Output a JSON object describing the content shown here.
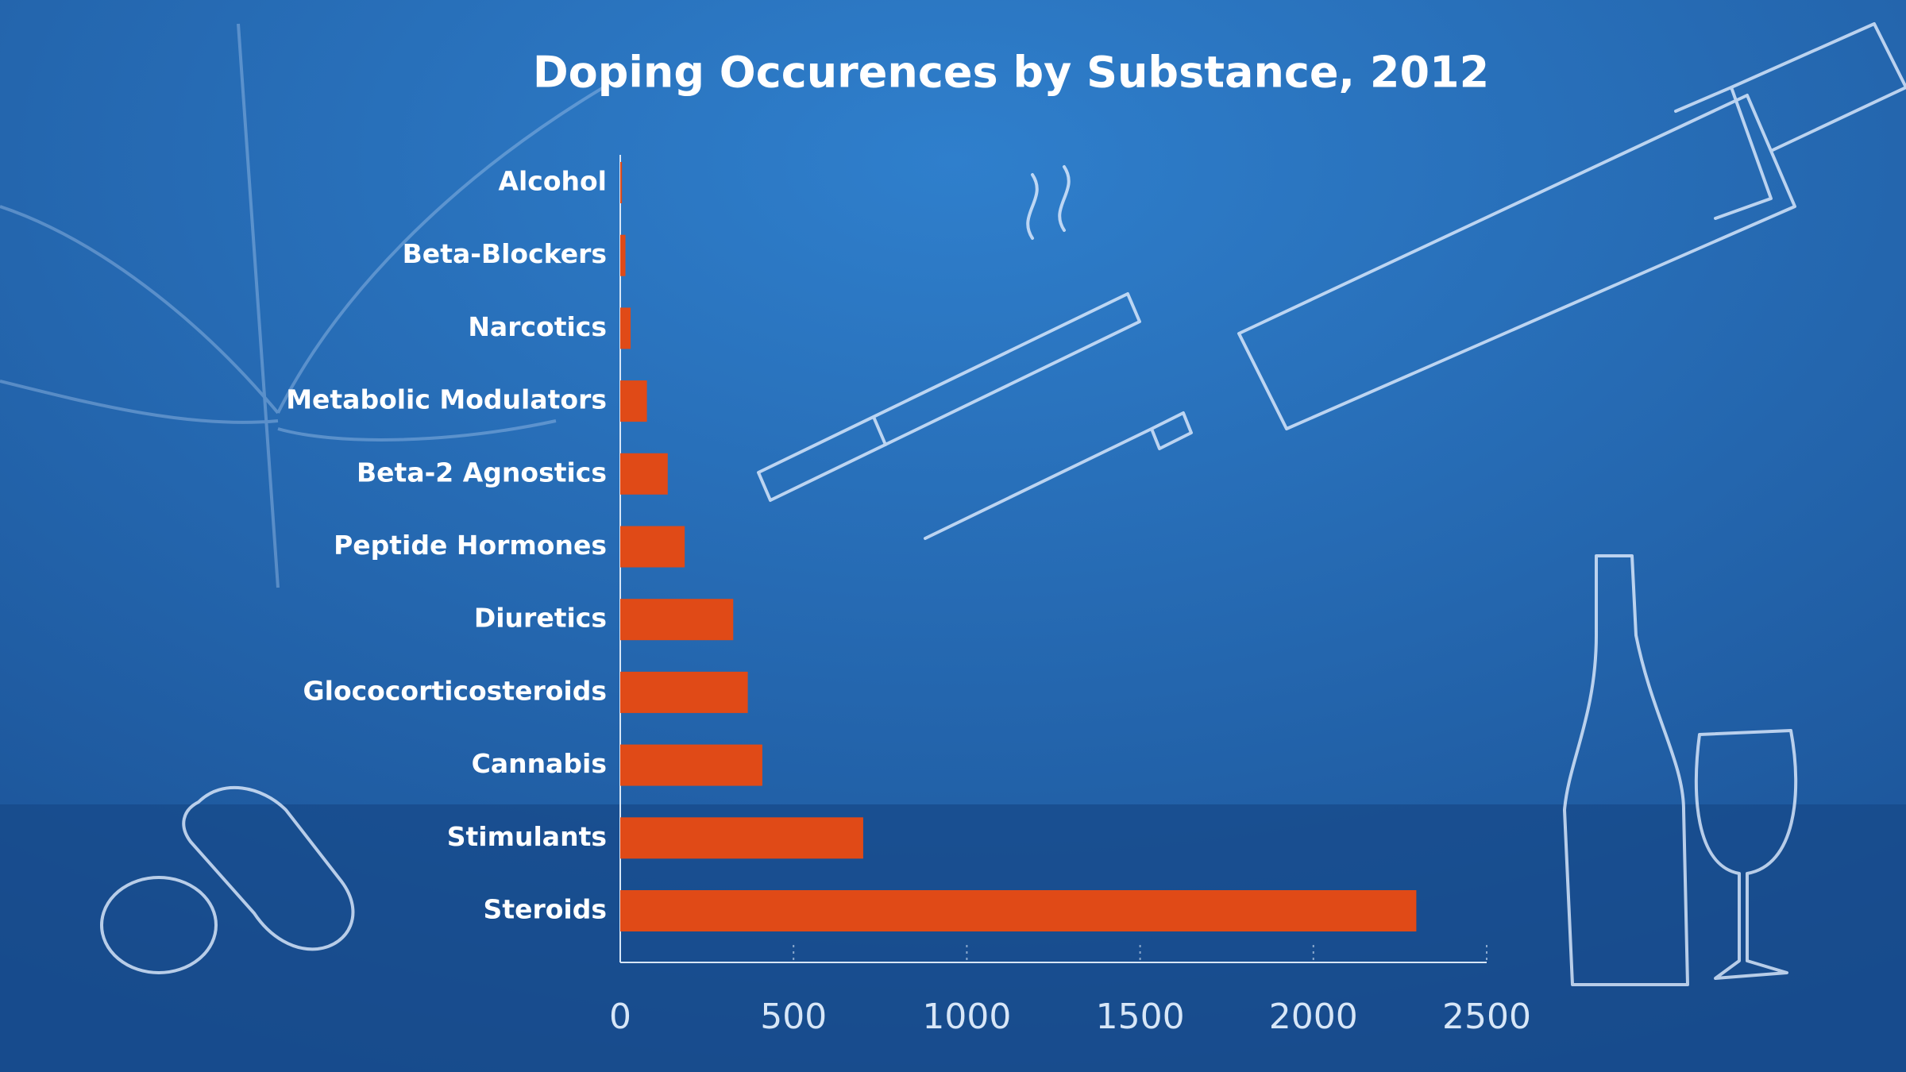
{
  "chart_data": {
    "type": "bar",
    "orientation": "horizontal",
    "title": "Doping Occurences by Substance, 2012",
    "categories": [
      "Alcohol",
      "Beta-Blockers",
      "Narcotics",
      "Metabolic Modulators",
      "Beta-2 Agnostics",
      "Peptide Hormones",
      "Diuretics",
      "Glococorticosteroids",
      "Cannabis",
      "Stimulants",
      "Steroids"
    ],
    "values": [
      5,
      15,
      30,
      77,
      137,
      186,
      326,
      368,
      410,
      701,
      2297
    ],
    "color": "#e04a17",
    "xlim": [
      0,
      2500
    ],
    "xticks": [
      0,
      500,
      1000,
      1500,
      2000,
      2500
    ],
    "grid": true
  }
}
